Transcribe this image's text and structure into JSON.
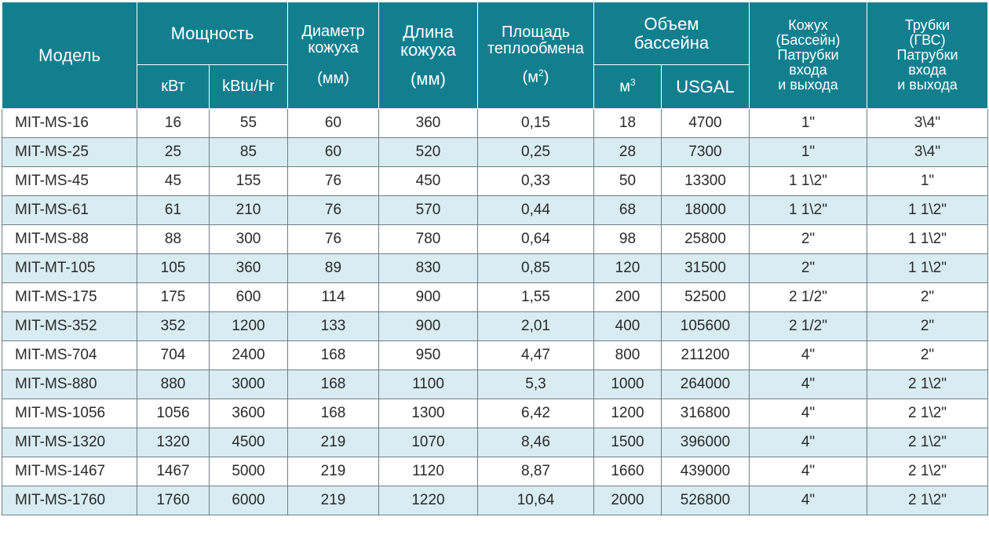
{
  "headers": {
    "model": "Модель",
    "power": "Мощность",
    "power_kw": "кВт",
    "power_kbtu": "kBtu/Hr",
    "diameter_l1": "Диаметр",
    "diameter_l2": "кожуха",
    "diameter_unit": "(мм)",
    "length_l1": "Длина",
    "length_l2": "кожуха",
    "length_unit": "(мм)",
    "area_l1": "Площадь",
    "area_l2": "теплообмена",
    "area_unit_base": "(м",
    "area_unit_sup": "2",
    "area_unit_close": ")",
    "volume_l1": "Объем",
    "volume_l2": "бассейна",
    "volume_m3_base": "м",
    "volume_m3_sup": "3",
    "volume_usgal": "USGAL",
    "shell_l1": "Кожух",
    "shell_l2": "(Бассейн)",
    "shell_l3": "Патрубки",
    "shell_l4": "входа",
    "shell_l5": "и выхода",
    "tubes_l1": "Трубки",
    "tubes_l2": "(ГВС)",
    "tubes_l3": "Патрубки",
    "tubes_l4": "входа",
    "tubes_l5": "и выхода"
  },
  "rows": [
    {
      "model": "MIT-MS-16",
      "kw": "16",
      "kbtu": "55",
      "diameter": "60",
      "length": "360",
      "area": "0,15",
      "m3": "18",
      "usgal": "4700",
      "shell": "1\"",
      "tubes": "3\\4\""
    },
    {
      "model": "MIT-MS-25",
      "kw": "25",
      "kbtu": "85",
      "diameter": "60",
      "length": "520",
      "area": "0,25",
      "m3": "28",
      "usgal": "7300",
      "shell": "1\"",
      "tubes": "3\\4\""
    },
    {
      "model": "MIT-MS-45",
      "kw": "45",
      "kbtu": "155",
      "diameter": "76",
      "length": "450",
      "area": "0,33",
      "m3": "50",
      "usgal": "13300",
      "shell": "1 1\\2\"",
      "tubes": "1\""
    },
    {
      "model": "MIT-MS-61",
      "kw": "61",
      "kbtu": "210",
      "diameter": "76",
      "length": "570",
      "area": "0,44",
      "m3": "68",
      "usgal": "18000",
      "shell": "1 1\\2\"",
      "tubes": "1 1\\2\""
    },
    {
      "model": "MIT-MS-88",
      "kw": "88",
      "kbtu": "300",
      "diameter": "76",
      "length": "780",
      "area": "0,64",
      "m3": "98",
      "usgal": "25800",
      "shell": "2\"",
      "tubes": "1 1\\2\""
    },
    {
      "model": "MIT-MT-105",
      "kw": "105",
      "kbtu": "360",
      "diameter": "89",
      "length": "830",
      "area": "0,85",
      "m3": "120",
      "usgal": "31500",
      "shell": "2\"",
      "tubes": "1 1\\2\""
    },
    {
      "model": "MIT-MS-175",
      "kw": "175",
      "kbtu": "600",
      "diameter": "114",
      "length": "900",
      "area": "1,55",
      "m3": "200",
      "usgal": "52500",
      "shell": "2 1/2\"",
      "tubes": "2\""
    },
    {
      "model": "MIT-MS-352",
      "kw": "352",
      "kbtu": "1200",
      "diameter": "133",
      "length": "900",
      "area": "2,01",
      "m3": "400",
      "usgal": "105600",
      "shell": "2 1/2\"",
      "tubes": "2\""
    },
    {
      "model": "MIT-MS-704",
      "kw": "704",
      "kbtu": "2400",
      "diameter": "168",
      "length": "950",
      "area": "4,47",
      "m3": "800",
      "usgal": "211200",
      "shell": "4\"",
      "tubes": "2\""
    },
    {
      "model": "MIT-MS-880",
      "kw": "880",
      "kbtu": "3000",
      "diameter": "168",
      "length": "1100",
      "area": "5,3",
      "m3": "1000",
      "usgal": "264000",
      "shell": "4\"",
      "tubes": "2 1\\2\""
    },
    {
      "model": "MIT-MS-1056",
      "kw": "1056",
      "kbtu": "3600",
      "diameter": "168",
      "length": "1300",
      "area": "6,42",
      "m3": "1200",
      "usgal": "316800",
      "shell": "4\"",
      "tubes": "2 1\\2\""
    },
    {
      "model": "MIT-MS-1320",
      "kw": "1320",
      "kbtu": "4500",
      "diameter": "219",
      "length": "1070",
      "area": "8,46",
      "m3": "1500",
      "usgal": "396000",
      "shell": "4\"",
      "tubes": "2 1\\2\""
    },
    {
      "model": "MIT-MS-1467",
      "kw": "1467",
      "kbtu": "5000",
      "diameter": "219",
      "length": "1120",
      "area": "8,87",
      "m3": "1660",
      "usgal": "439000",
      "shell": "4\"",
      "tubes": "2 1\\2\""
    },
    {
      "model": "MIT-MS-1760",
      "kw": "1760",
      "kbtu": "6000",
      "diameter": "219",
      "length": "1220",
      "area": "10,64",
      "m3": "2000",
      "usgal": "526800",
      "shell": "4\"",
      "tubes": "2 1\\2\""
    }
  ],
  "colors": {
    "header_bg": "#127f8f",
    "row_alt_bg": "#d9ecf2",
    "grid": "#6d7f86"
  }
}
